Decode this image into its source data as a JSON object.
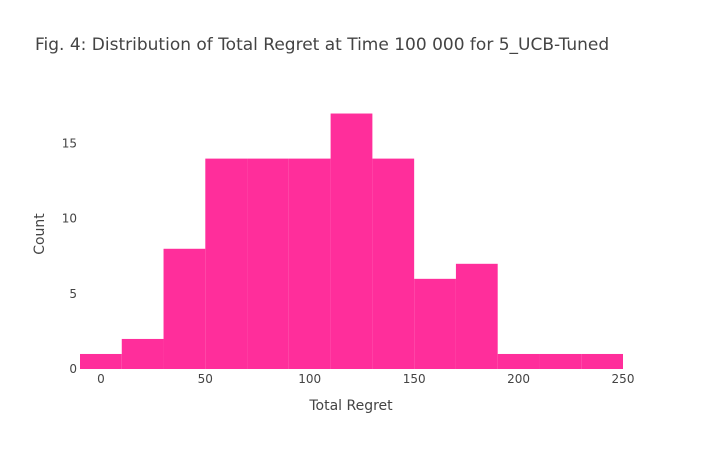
{
  "chart_data": {
    "type": "bar",
    "title": "Fig. 4: Distribution of Total Regret at Time 100 000 for 5_UCB-Tuned",
    "xlabel": "Total Regret",
    "ylabel": "Count",
    "bin_width": 20,
    "bins": [
      {
        "start": -10,
        "end": 10,
        "count": 1
      },
      {
        "start": 10,
        "end": 30,
        "count": 2
      },
      {
        "start": 30,
        "end": 50,
        "count": 8
      },
      {
        "start": 50,
        "end": 70,
        "count": 14
      },
      {
        "start": 70,
        "end": 90,
        "count": 14
      },
      {
        "start": 90,
        "end": 110,
        "count": 14
      },
      {
        "start": 110,
        "end": 130,
        "count": 17
      },
      {
        "start": 130,
        "end": 150,
        "count": 14
      },
      {
        "start": 150,
        "end": 170,
        "count": 6
      },
      {
        "start": 170,
        "end": 190,
        "count": 7
      },
      {
        "start": 190,
        "end": 210,
        "count": 1
      },
      {
        "start": 210,
        "end": 230,
        "count": 1
      },
      {
        "start": 230,
        "end": 250,
        "count": 1
      }
    ],
    "xlim": [
      -10,
      250
    ],
    "ylim": [
      0,
      17.9
    ],
    "xticks": [
      0,
      50,
      100,
      150,
      200,
      250
    ],
    "yticks": [
      0,
      5,
      10,
      15
    ],
    "bar_color": "#ff2e9b",
    "grid": false,
    "legend": "none"
  }
}
